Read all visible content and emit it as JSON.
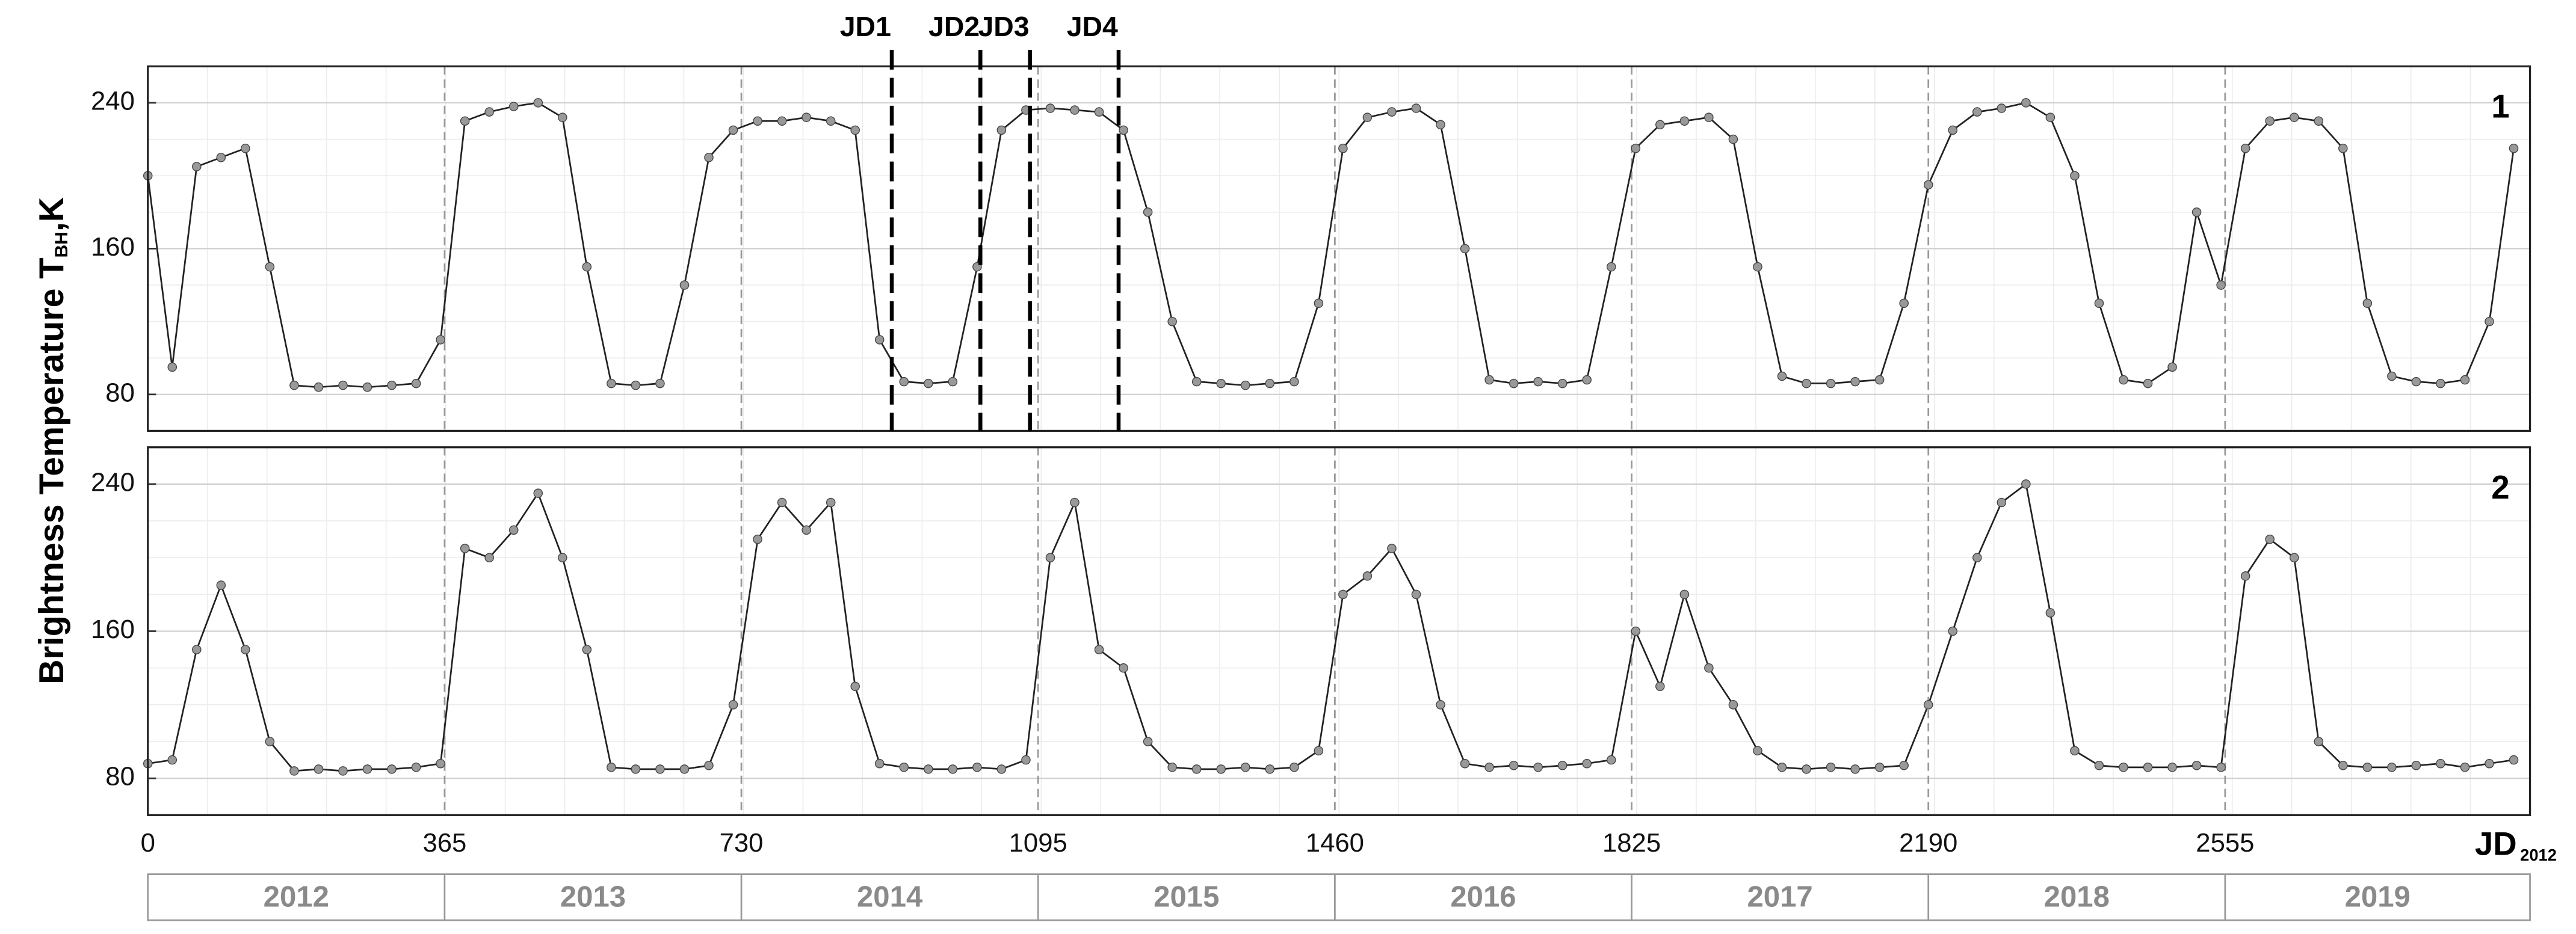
{
  "chart_data": [
    {
      "type": "line",
      "panel_label": "1",
      "ylabel": "Brightness Temperature T",
      "ylabel_sub": "BH",
      "ylabel_unit": ",K",
      "xlim": [
        0,
        2930
      ],
      "ylim": [
        60,
        260
      ],
      "yticks": [
        80,
        160,
        240
      ],
      "xticks": [
        0,
        365,
        730,
        1095,
        1460,
        1825,
        2190,
        2555
      ],
      "grid": true,
      "markers": [
        {
          "label": "JD1",
          "x": 915
        },
        {
          "label": "JD2",
          "x": 1024
        },
        {
          "label": "JD3",
          "x": 1085
        },
        {
          "label": "JD4",
          "x": 1194
        }
      ],
      "x": [
        0,
        30,
        60,
        90,
        120,
        150,
        180,
        210,
        240,
        270,
        300,
        330,
        360,
        390,
        420,
        450,
        480,
        510,
        540,
        570,
        600,
        630,
        660,
        690,
        720,
        750,
        780,
        810,
        840,
        870,
        900,
        930,
        960,
        990,
        1020,
        1050,
        1080,
        1110,
        1140,
        1170,
        1200,
        1230,
        1260,
        1290,
        1320,
        1350,
        1380,
        1410,
        1440,
        1470,
        1500,
        1530,
        1560,
        1590,
        1620,
        1650,
        1680,
        1710,
        1740,
        1770,
        1800,
        1830,
        1860,
        1890,
        1920,
        1950,
        1980,
        2010,
        2040,
        2070,
        2100,
        2130,
        2160,
        2190,
        2220,
        2250,
        2280,
        2310,
        2340,
        2370,
        2400,
        2430,
        2460,
        2490,
        2520,
        2550,
        2580,
        2610,
        2640,
        2670,
        2700,
        2730,
        2760,
        2790,
        2820,
        2850,
        2880,
        2910
      ],
      "series": [
        {
          "color": "#999999",
          "values": [
            200,
            95,
            205,
            210,
            215,
            150,
            85,
            84,
            85,
            84,
            85,
            86,
            110,
            230,
            235,
            238,
            240,
            232,
            150,
            86,
            85,
            86,
            140,
            210,
            225,
            230,
            230,
            232,
            230,
            225,
            110,
            87,
            86,
            87,
            150,
            225,
            236,
            237,
            236,
            235,
            225,
            180,
            120,
            87,
            86,
            85,
            86,
            87,
            130,
            215,
            232,
            235,
            237,
            228,
            160,
            88,
            86,
            87,
            86,
            88,
            150,
            215,
            228,
            230,
            232,
            220,
            150,
            90,
            86,
            86,
            87,
            88,
            130,
            195,
            225,
            235,
            237,
            240,
            232,
            200,
            130,
            88,
            86,
            95,
            180,
            140,
            215,
            230,
            232,
            230,
            215,
            130,
            90,
            87,
            86,
            88,
            120,
            215
          ]
        }
      ]
    },
    {
      "type": "line",
      "panel_label": "2",
      "xlim": [
        0,
        2930
      ],
      "ylim": [
        60,
        260
      ],
      "yticks": [
        80,
        160,
        240
      ],
      "xticks": [
        0,
        365,
        730,
        1095,
        1460,
        1825,
        2190,
        2555
      ],
      "grid": true,
      "xlabel": "JD",
      "xlabel_sub": "2012",
      "year_labels": [
        "2012",
        "2013",
        "2014",
        "2015",
        "2016",
        "2017",
        "2018",
        "2019"
      ],
      "x": [
        0,
        30,
        60,
        90,
        120,
        150,
        180,
        210,
        240,
        270,
        300,
        330,
        360,
        390,
        420,
        450,
        480,
        510,
        540,
        570,
        600,
        630,
        660,
        690,
        720,
        750,
        780,
        810,
        840,
        870,
        900,
        930,
        960,
        990,
        1020,
        1050,
        1080,
        1110,
        1140,
        1170,
        1200,
        1230,
        1260,
        1290,
        1320,
        1350,
        1380,
        1410,
        1440,
        1470,
        1500,
        1530,
        1560,
        1590,
        1620,
        1650,
        1680,
        1710,
        1740,
        1770,
        1800,
        1830,
        1860,
        1890,
        1920,
        1950,
        1980,
        2010,
        2040,
        2070,
        2100,
        2130,
        2160,
        2190,
        2220,
        2250,
        2280,
        2310,
        2340,
        2370,
        2400,
        2430,
        2460,
        2490,
        2520,
        2550,
        2580,
        2610,
        2640,
        2670,
        2700,
        2730,
        2760,
        2790,
        2820,
        2850,
        2880,
        2910
      ],
      "series": [
        {
          "color": "#999999",
          "values": [
            88,
            90,
            150,
            185,
            150,
            100,
            84,
            85,
            84,
            85,
            85,
            86,
            88,
            205,
            200,
            215,
            235,
            200,
            150,
            86,
            85,
            85,
            85,
            87,
            120,
            210,
            230,
            215,
            230,
            130,
            88,
            86,
            85,
            85,
            86,
            85,
            90,
            200,
            230,
            150,
            140,
            100,
            86,
            85,
            85,
            86,
            85,
            86,
            95,
            180,
            190,
            205,
            180,
            120,
            88,
            86,
            87,
            86,
            87,
            88,
            90,
            160,
            130,
            180,
            140,
            120,
            95,
            86,
            85,
            86,
            85,
            86,
            87,
            120,
            160,
            200,
            230,
            240,
            170,
            95,
            87,
            86,
            86,
            86,
            87,
            86,
            190,
            210,
            200,
            100,
            87,
            86,
            86,
            87,
            88,
            86,
            88,
            90
          ]
        }
      ]
    }
  ]
}
